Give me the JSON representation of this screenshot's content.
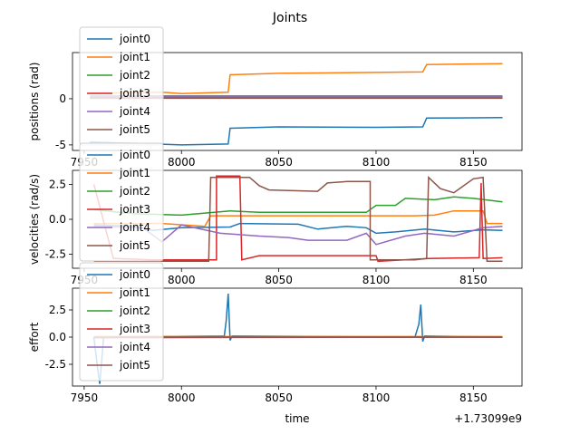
{
  "figure": {
    "title": "Joints",
    "xlabel": "time",
    "offset_label": "+1.73099e9"
  },
  "colors": {
    "joint0": "#1f77b4",
    "joint1": "#ff7f0e",
    "joint2": "#2ca02c",
    "joint3": "#d62728",
    "joint4": "#9467bd",
    "joint5": "#8c564b"
  },
  "chart_data": [
    {
      "type": "line",
      "ylabel": "positions (rad)",
      "xlim": [
        7944,
        8175
      ],
      "ylim": [
        -5.6,
        5.0
      ],
      "xticks": [
        "7950",
        "8000",
        "8050",
        "8100",
        "8150"
      ],
      "yticks": [
        "-5",
        "0"
      ],
      "legend": "upper-left",
      "series": [
        {
          "name": "joint0",
          "points": [
            [
              7953,
              -4.7
            ],
            [
              7980,
              -4.85
            ],
            [
              8000,
              -5.0
            ],
            [
              8024,
              -4.9
            ],
            [
              8025,
              -3.2
            ],
            [
              8050,
              -3.05
            ],
            [
              8100,
              -3.1
            ],
            [
              8124,
              -3.05
            ],
            [
              8126,
              -2.1
            ],
            [
              8165,
              -2.05
            ]
          ]
        },
        {
          "name": "joint1",
          "points": [
            [
              7953,
              0.6
            ],
            [
              7990,
              0.7
            ],
            [
              8000,
              0.55
            ],
            [
              8024,
              0.7
            ],
            [
              8025,
              2.6
            ],
            [
              8050,
              2.75
            ],
            [
              8100,
              2.85
            ],
            [
              8124,
              2.9
            ],
            [
              8126,
              3.7
            ],
            [
              8165,
              3.8
            ]
          ]
        },
        {
          "name": "joint2",
          "points": [
            [
              7953,
              0.3
            ],
            [
              8165,
              0.3
            ]
          ]
        },
        {
          "name": "joint3",
          "points": [
            [
              7953,
              0.1
            ],
            [
              8165,
              0.1
            ]
          ]
        },
        {
          "name": "joint4",
          "points": [
            [
              7953,
              0.2
            ],
            [
              8165,
              0.2
            ]
          ]
        },
        {
          "name": "joint5",
          "points": [
            [
              7953,
              0.05
            ],
            [
              8165,
              0.05
            ]
          ]
        }
      ]
    },
    {
      "type": "line",
      "ylabel": "velocities (rad/s)",
      "xlim": [
        7944,
        8175
      ],
      "ylim": [
        -3.5,
        3.5
      ],
      "xticks": [
        "7950",
        "8000",
        "8050",
        "8100",
        "8150"
      ],
      "yticks": [
        "-2.5",
        "0.0",
        "2.5"
      ],
      "legend": "upper-left",
      "series": [
        {
          "name": "joint0",
          "points": [
            [
              7955,
              -0.4
            ],
            [
              7975,
              -0.5
            ],
            [
              7985,
              -0.8
            ],
            [
              8000,
              -0.6
            ],
            [
              8025,
              -0.55
            ],
            [
              8030,
              -0.3
            ],
            [
              8060,
              -0.35
            ],
            [
              8070,
              -0.7
            ],
            [
              8085,
              -0.5
            ],
            [
              8095,
              -0.6
            ],
            [
              8100,
              -1.0
            ],
            [
              8110,
              -0.9
            ],
            [
              8125,
              -0.7
            ],
            [
              8140,
              -0.9
            ],
            [
              8155,
              -0.75
            ],
            [
              8165,
              -0.8
            ]
          ]
        },
        {
          "name": "joint1",
          "points": [
            [
              7955,
              -0.3
            ],
            [
              7990,
              -0.3
            ],
            [
              8012,
              -0.5
            ],
            [
              8015,
              0.25
            ],
            [
              8100,
              0.25
            ],
            [
              8120,
              0.25
            ],
            [
              8130,
              0.3
            ],
            [
              8140,
              0.6
            ],
            [
              8155,
              0.6
            ],
            [
              8157,
              -0.3
            ],
            [
              8165,
              -0.3
            ]
          ]
        },
        {
          "name": "joint2",
          "points": [
            [
              7955,
              0.7
            ],
            [
              7975,
              0.4
            ],
            [
              8000,
              0.3
            ],
            [
              8025,
              0.6
            ],
            [
              8040,
              0.5
            ],
            [
              8095,
              0.5
            ],
            [
              8100,
              1.0
            ],
            [
              8110,
              1.0
            ],
            [
              8115,
              1.5
            ],
            [
              8130,
              1.4
            ],
            [
              8140,
              1.6
            ],
            [
              8150,
              1.5
            ],
            [
              8165,
              1.25
            ]
          ]
        },
        {
          "name": "joint3",
          "points": [
            [
              7955,
              2.5
            ],
            [
              7965,
              -2.8
            ],
            [
              7985,
              -2.9
            ],
            [
              8018,
              -2.9
            ],
            [
              8018,
              3.1
            ],
            [
              8030,
              3.1
            ],
            [
              8031,
              -2.9
            ],
            [
              8040,
              -2.6
            ],
            [
              8070,
              -2.6
            ],
            [
              8100,
              -2.6
            ],
            [
              8101,
              -3.0
            ],
            [
              8127,
              -2.8
            ],
            [
              8153,
              -2.75
            ],
            [
              8154,
              2.6
            ],
            [
              8155,
              -2.8
            ],
            [
              8165,
              -2.75
            ]
          ]
        },
        {
          "name": "joint4",
          "points": [
            [
              7955,
              -0.5
            ],
            [
              7980,
              -0.6
            ],
            [
              7990,
              -1.6
            ],
            [
              8000,
              -0.4
            ],
            [
              8020,
              -1.0
            ],
            [
              8040,
              -1.2
            ],
            [
              8055,
              -1.3
            ],
            [
              8065,
              -1.5
            ],
            [
              8085,
              -1.5
            ],
            [
              8095,
              -1.0
            ],
            [
              8100,
              -1.8
            ],
            [
              8115,
              -1.2
            ],
            [
              8125,
              -1.0
            ],
            [
              8140,
              -1.2
            ],
            [
              8155,
              -0.6
            ],
            [
              8165,
              -0.5
            ]
          ]
        },
        {
          "name": "joint5",
          "points": [
            [
              7955,
              -3.0
            ],
            [
              7990,
              -3.0
            ],
            [
              8014,
              -3.0
            ],
            [
              8015,
              3.0
            ],
            [
              8035,
              3.0
            ],
            [
              8040,
              2.4
            ],
            [
              8045,
              2.1
            ],
            [
              8070,
              2.0
            ],
            [
              8075,
              2.6
            ],
            [
              8085,
              2.7
            ],
            [
              8097,
              2.7
            ],
            [
              8097,
              -2.9
            ],
            [
              8120,
              -2.9
            ],
            [
              8126,
              -2.8
            ],
            [
              8127,
              3.0
            ],
            [
              8133,
              2.2
            ],
            [
              8140,
              1.9
            ],
            [
              8150,
              2.9
            ],
            [
              8155,
              3.0
            ],
            [
              8157,
              -3.0
            ],
            [
              8165,
              -3.0
            ]
          ]
        }
      ]
    },
    {
      "type": "line",
      "ylabel": "effort",
      "xlim": [
        7944,
        8175
      ],
      "ylim": [
        -4.5,
        4.5
      ],
      "xticks": [
        "7950",
        "8000",
        "8050",
        "8100",
        "8150"
      ],
      "yticks": [
        "-2.5",
        "0.0",
        "2.5"
      ],
      "legend": "upper-left",
      "series": [
        {
          "name": "joint0",
          "points": [
            [
              7955,
              0.0
            ],
            [
              7957,
              -3.0
            ],
            [
              7958,
              -4.3
            ],
            [
              7960,
              0.0
            ],
            [
              8022,
              0.1
            ],
            [
              8023,
              1.5
            ],
            [
              8024,
              4.0
            ],
            [
              8025,
              -0.3
            ],
            [
              8026,
              0.1
            ],
            [
              8120,
              0.0
            ],
            [
              8122,
              1.2
            ],
            [
              8123,
              3.0
            ],
            [
              8124,
              -0.4
            ],
            [
              8125,
              0.1
            ],
            [
              8165,
              0.0
            ]
          ]
        },
        {
          "name": "joint1",
          "points": [
            [
              7955,
              0.05
            ],
            [
              8165,
              0.05
            ]
          ]
        },
        {
          "name": "joint2",
          "points": [
            [
              7955,
              0.0
            ],
            [
              8165,
              0.0
            ]
          ]
        },
        {
          "name": "joint3",
          "points": [
            [
              7955,
              -0.05
            ],
            [
              8165,
              0.0
            ]
          ]
        },
        {
          "name": "joint4",
          "points": [
            [
              7955,
              0.0
            ],
            [
              8165,
              0.0
            ]
          ]
        },
        {
          "name": "joint5",
          "points": [
            [
              7955,
              0.0
            ],
            [
              8165,
              0.0
            ]
          ]
        }
      ]
    }
  ]
}
